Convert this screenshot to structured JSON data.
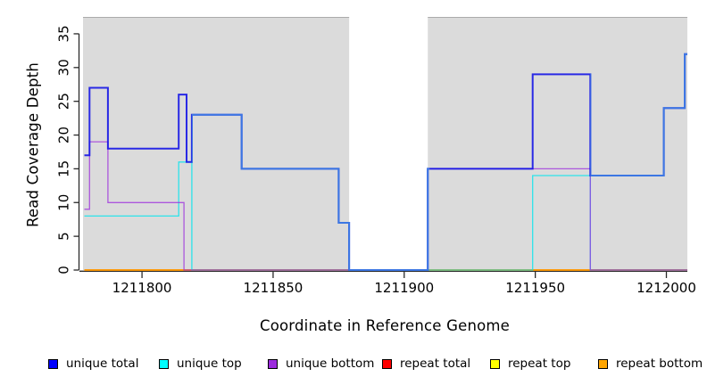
{
  "axes": {
    "x_label": "Coordinate in Reference Genome",
    "y_label": "Read Coverage Depth"
  },
  "chart_data": {
    "type": "line",
    "subtype": "step",
    "title": "",
    "xlabel": "Coordinate in Reference Genome",
    "ylabel": "Read Coverage Depth",
    "xlim": [
      1211777.5,
      1212008
    ],
    "ylim": [
      0,
      37.5
    ],
    "x_ticks": [
      1211800,
      1211850,
      1211900,
      1211950,
      1212000
    ],
    "y_ticks": [
      0,
      5,
      10,
      15,
      20,
      25,
      30,
      35
    ],
    "grid": false,
    "legend_position": "bottom",
    "panel": {
      "color": "#DBDBDB",
      "top_edge_color": "#ABABAB",
      "missing_data_region": [
        1211879,
        1211909
      ]
    },
    "series": [
      {
        "name": "repeat top",
        "color": "#FFFF00",
        "opacity": 1,
        "width": 1.4,
        "points": [
          [
            1211778,
            0
          ]
        ],
        "end": 1212008
      },
      {
        "name": "repeat total",
        "color": "#FF0000",
        "opacity": 0.95,
        "width": 1.4,
        "points": [
          [
            1211778,
            0
          ]
        ],
        "end": 1212008
      },
      {
        "name": "repeat bottom",
        "color": "#FFA500",
        "opacity": 1,
        "width": 1.5,
        "points": [
          [
            1211778,
            0
          ]
        ],
        "end": 1212008
      },
      {
        "name": "unique top",
        "color": "#00E5EE",
        "opacity": 0.8,
        "width": 1.3,
        "points": [
          [
            1211778,
            8
          ],
          [
            1211814,
            16
          ],
          [
            1211819,
            0
          ],
          [
            1211949,
            14
          ],
          [
            1211971,
            0
          ]
        ],
        "end": 1212008
      },
      {
        "name": "unique bottom",
        "color": "#9C2BDD",
        "opacity": 0.75,
        "width": 1.3,
        "points": [
          [
            1211778,
            9
          ],
          [
            1211780,
            19
          ],
          [
            1211787,
            10
          ],
          [
            1211816,
            0
          ],
          [
            1211909,
            15
          ],
          [
            1211971,
            0
          ]
        ],
        "end": 1212008
      },
      {
        "name": "unique total",
        "color": "#1515E6",
        "opacity": 0.9,
        "width": 2,
        "alt_color": "#3D7BE3",
        "alt_ranges": [
          [
            1211819,
            1211909
          ],
          [
            1211971,
            1212009
          ]
        ],
        "points": [
          [
            1211778,
            17
          ],
          [
            1211780,
            27
          ],
          [
            1211787,
            18
          ],
          [
            1211814,
            26
          ],
          [
            1211817,
            16
          ],
          [
            1211819,
            23
          ],
          [
            1211838,
            15
          ],
          [
            1211875,
            7
          ],
          [
            1211879,
            0
          ],
          [
            1211909,
            15
          ],
          [
            1211949,
            29
          ],
          [
            1211971,
            14
          ],
          [
            1211999,
            24
          ],
          [
            1212007,
            32
          ]
        ],
        "end": 1212008
      }
    ]
  },
  "legend": {
    "items": [
      {
        "label": "unique total",
        "color": "#0000FF"
      },
      {
        "label": "unique top",
        "color": "#00FFFF"
      },
      {
        "label": "unique bottom",
        "color": "#9C2BDD"
      },
      {
        "label": "repeat total",
        "color": "#FF0000"
      },
      {
        "label": "repeat top",
        "color": "#FFFF00"
      },
      {
        "label": "repeat bottom",
        "color": "#FFA500"
      }
    ]
  }
}
